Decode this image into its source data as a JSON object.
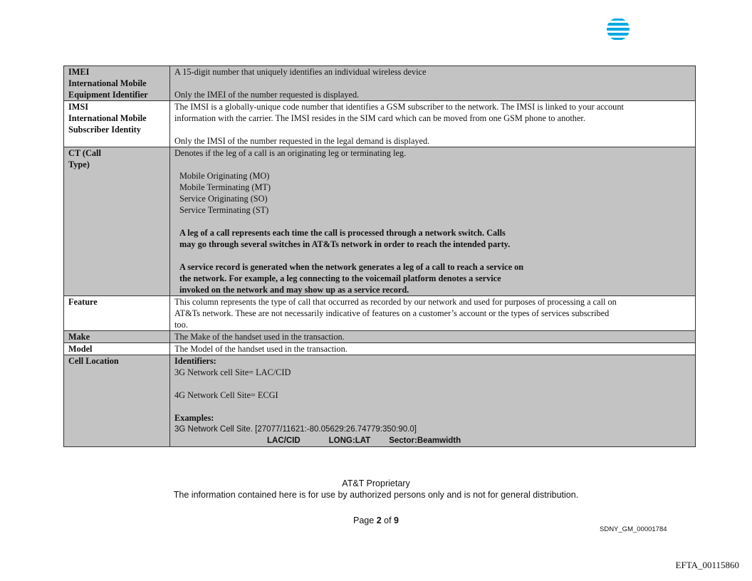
{
  "brand": {
    "logo": "AT&T globe logo",
    "color": "#00a8e0"
  },
  "rows": [
    {
      "label": [
        "IMEI",
        "International Mobile",
        "Equipment Identifier"
      ],
      "shade": "gray",
      "lines": [
        "A 15-digit number that uniquely identifies an individual wireless device",
        "",
        "Only the IMEI of the number requested is displayed."
      ]
    },
    {
      "label": [
        "IMSI",
        "International Mobile",
        "Subscriber Identity"
      ],
      "shade": "white",
      "lines": [
        "The IMSI is a globally-unique code number that identifies a GSM subscriber to the network. The IMSI is linked to your account",
        "information with the carrier. The IMSI resides in the SIM card which can be moved from one GSM phone to another.",
        "",
        "Only the IMSI of the number requested in the legal demand is displayed."
      ]
    },
    {
      "label": [
        "CT (Call",
        "Type)"
      ],
      "shade": "gray",
      "lines": [
        "Denotes if the leg of a call is an originating leg or terminating leg.",
        ""
      ],
      "types": [
        "Mobile Originating (MO)",
        "Mobile Terminating (MT)",
        "Service Originating (SO)",
        "Service Terminating (ST)"
      ],
      "notes": [
        "A leg of a call represents each time the call is processed through a network switch. Calls",
        "may go  through several switches in AT&Ts network in order to reach the intended party.",
        "",
        "A service record is generated when the network generates a leg of a call to reach a service on",
        "the  network. For example, a leg connecting to the voicemail platform denotes a service",
        "invoked on the  network and may show up as a service record."
      ]
    },
    {
      "label": [
        "Feature"
      ],
      "shade": "white",
      "lines": [
        "This column represents the type of call that occurred as recorded by our network and used for purposes of processing a call on",
        "AT&Ts network. These are not necessarily indicative of features on a customer’s account or the types of services subscribed",
        "too."
      ]
    },
    {
      "label": [
        "Make"
      ],
      "shade": "gray",
      "lines": [
        "The Make of the handset used in the transaction."
      ]
    },
    {
      "label": [
        "Model"
      ],
      "shade": "white",
      "lines": [
        "The Model of the handset used in the transaction."
      ]
    },
    {
      "label": [
        "Cell Location"
      ],
      "shade": "gray",
      "identifiers_heading": "Identifiers:",
      "lines": [
        "3G Network cell Site= LAC/CID",
        "",
        "4G Network Cell Site= ECGI",
        ""
      ],
      "examples_heading": "Examples:",
      "example": "3G Network Cell Site. [27077/11621:-80.05629:26.74779:350:90.0]",
      "example_keys": [
        "LAC/CID",
        "LONG:LAT",
        "Sector:Beamwidth"
      ]
    }
  ],
  "footer": {
    "proprietary": "AT&T Proprietary",
    "notice": "The information contained here is for use by authorized persons only and is not for general distribution.",
    "page_prefix": "Page ",
    "page": "2",
    "page_of": " of ",
    "pages": "9",
    "bates": "SDNY_GM_00001784",
    "efta": "EFTA_00115860"
  }
}
